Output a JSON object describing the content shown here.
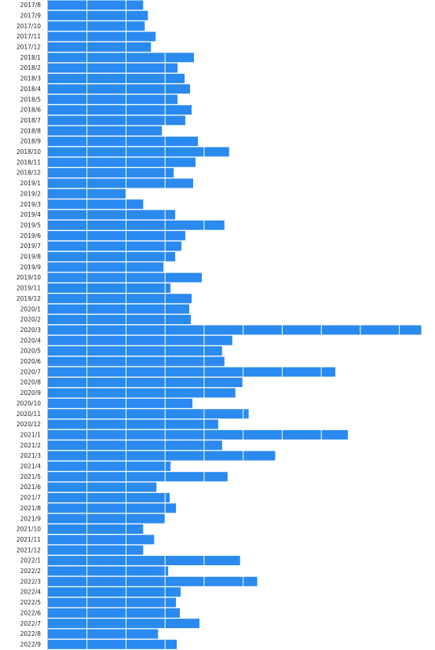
{
  "chart_data": {
    "type": "bar",
    "orientation": "horizontal",
    "title": "",
    "xlabel": "",
    "ylabel": "",
    "grid": true,
    "legend": "none",
    "bar_color": "#2a8af0",
    "grid_color": "#ffffff",
    "xlim": [
      0,
      480
    ],
    "categories": [
      "2017/8",
      "2017/9",
      "2017/10",
      "2017/11",
      "2017/12",
      "2018/1",
      "2018/2",
      "2018/3",
      "2018/4",
      "2018/5",
      "2018/6",
      "2018/7",
      "2018/8",
      "2018/9",
      "2018/10",
      "2018/11",
      "2018/12",
      "2019/1",
      "2019/2",
      "2019/3",
      "2019/4",
      "2019/5",
      "2019/6",
      "2019/7",
      "2019/8",
      "2019/9",
      "2019/10",
      "2019/11",
      "2019/12",
      "2020/1",
      "2020/2",
      "2020/3",
      "2020/4",
      "2020/5",
      "2020/6",
      "2020/7",
      "2020/8",
      "2020/9",
      "2020/10",
      "2020/11",
      "2020/12",
      "2021/1",
      "2021/2",
      "2021/3",
      "2021/4",
      "2021/5",
      "2021/6",
      "2021/7",
      "2021/8",
      "2021/9",
      "2021/10",
      "2021/11",
      "2021/12",
      "2022/1",
      "2022/2",
      "2022/3",
      "2022/4",
      "2022/5",
      "2022/6",
      "2022/7",
      "2022/8",
      "2022/9"
    ],
    "values": [
      122,
      128,
      124,
      138,
      132,
      187,
      166,
      175,
      182,
      166,
      184,
      176,
      146,
      192,
      232,
      189,
      161,
      186,
      100,
      122,
      163,
      226,
      176,
      171,
      163,
      148,
      197,
      157,
      184,
      181,
      183,
      478,
      236,
      223,
      226,
      368,
      249,
      240,
      185,
      257,
      218,
      384,
      223,
      291,
      157,
      230,
      139,
      156,
      164,
      150,
      122,
      136,
      122,
      246,
      154,
      268,
      170,
      164,
      169,
      194,
      141,
      165
    ]
  }
}
